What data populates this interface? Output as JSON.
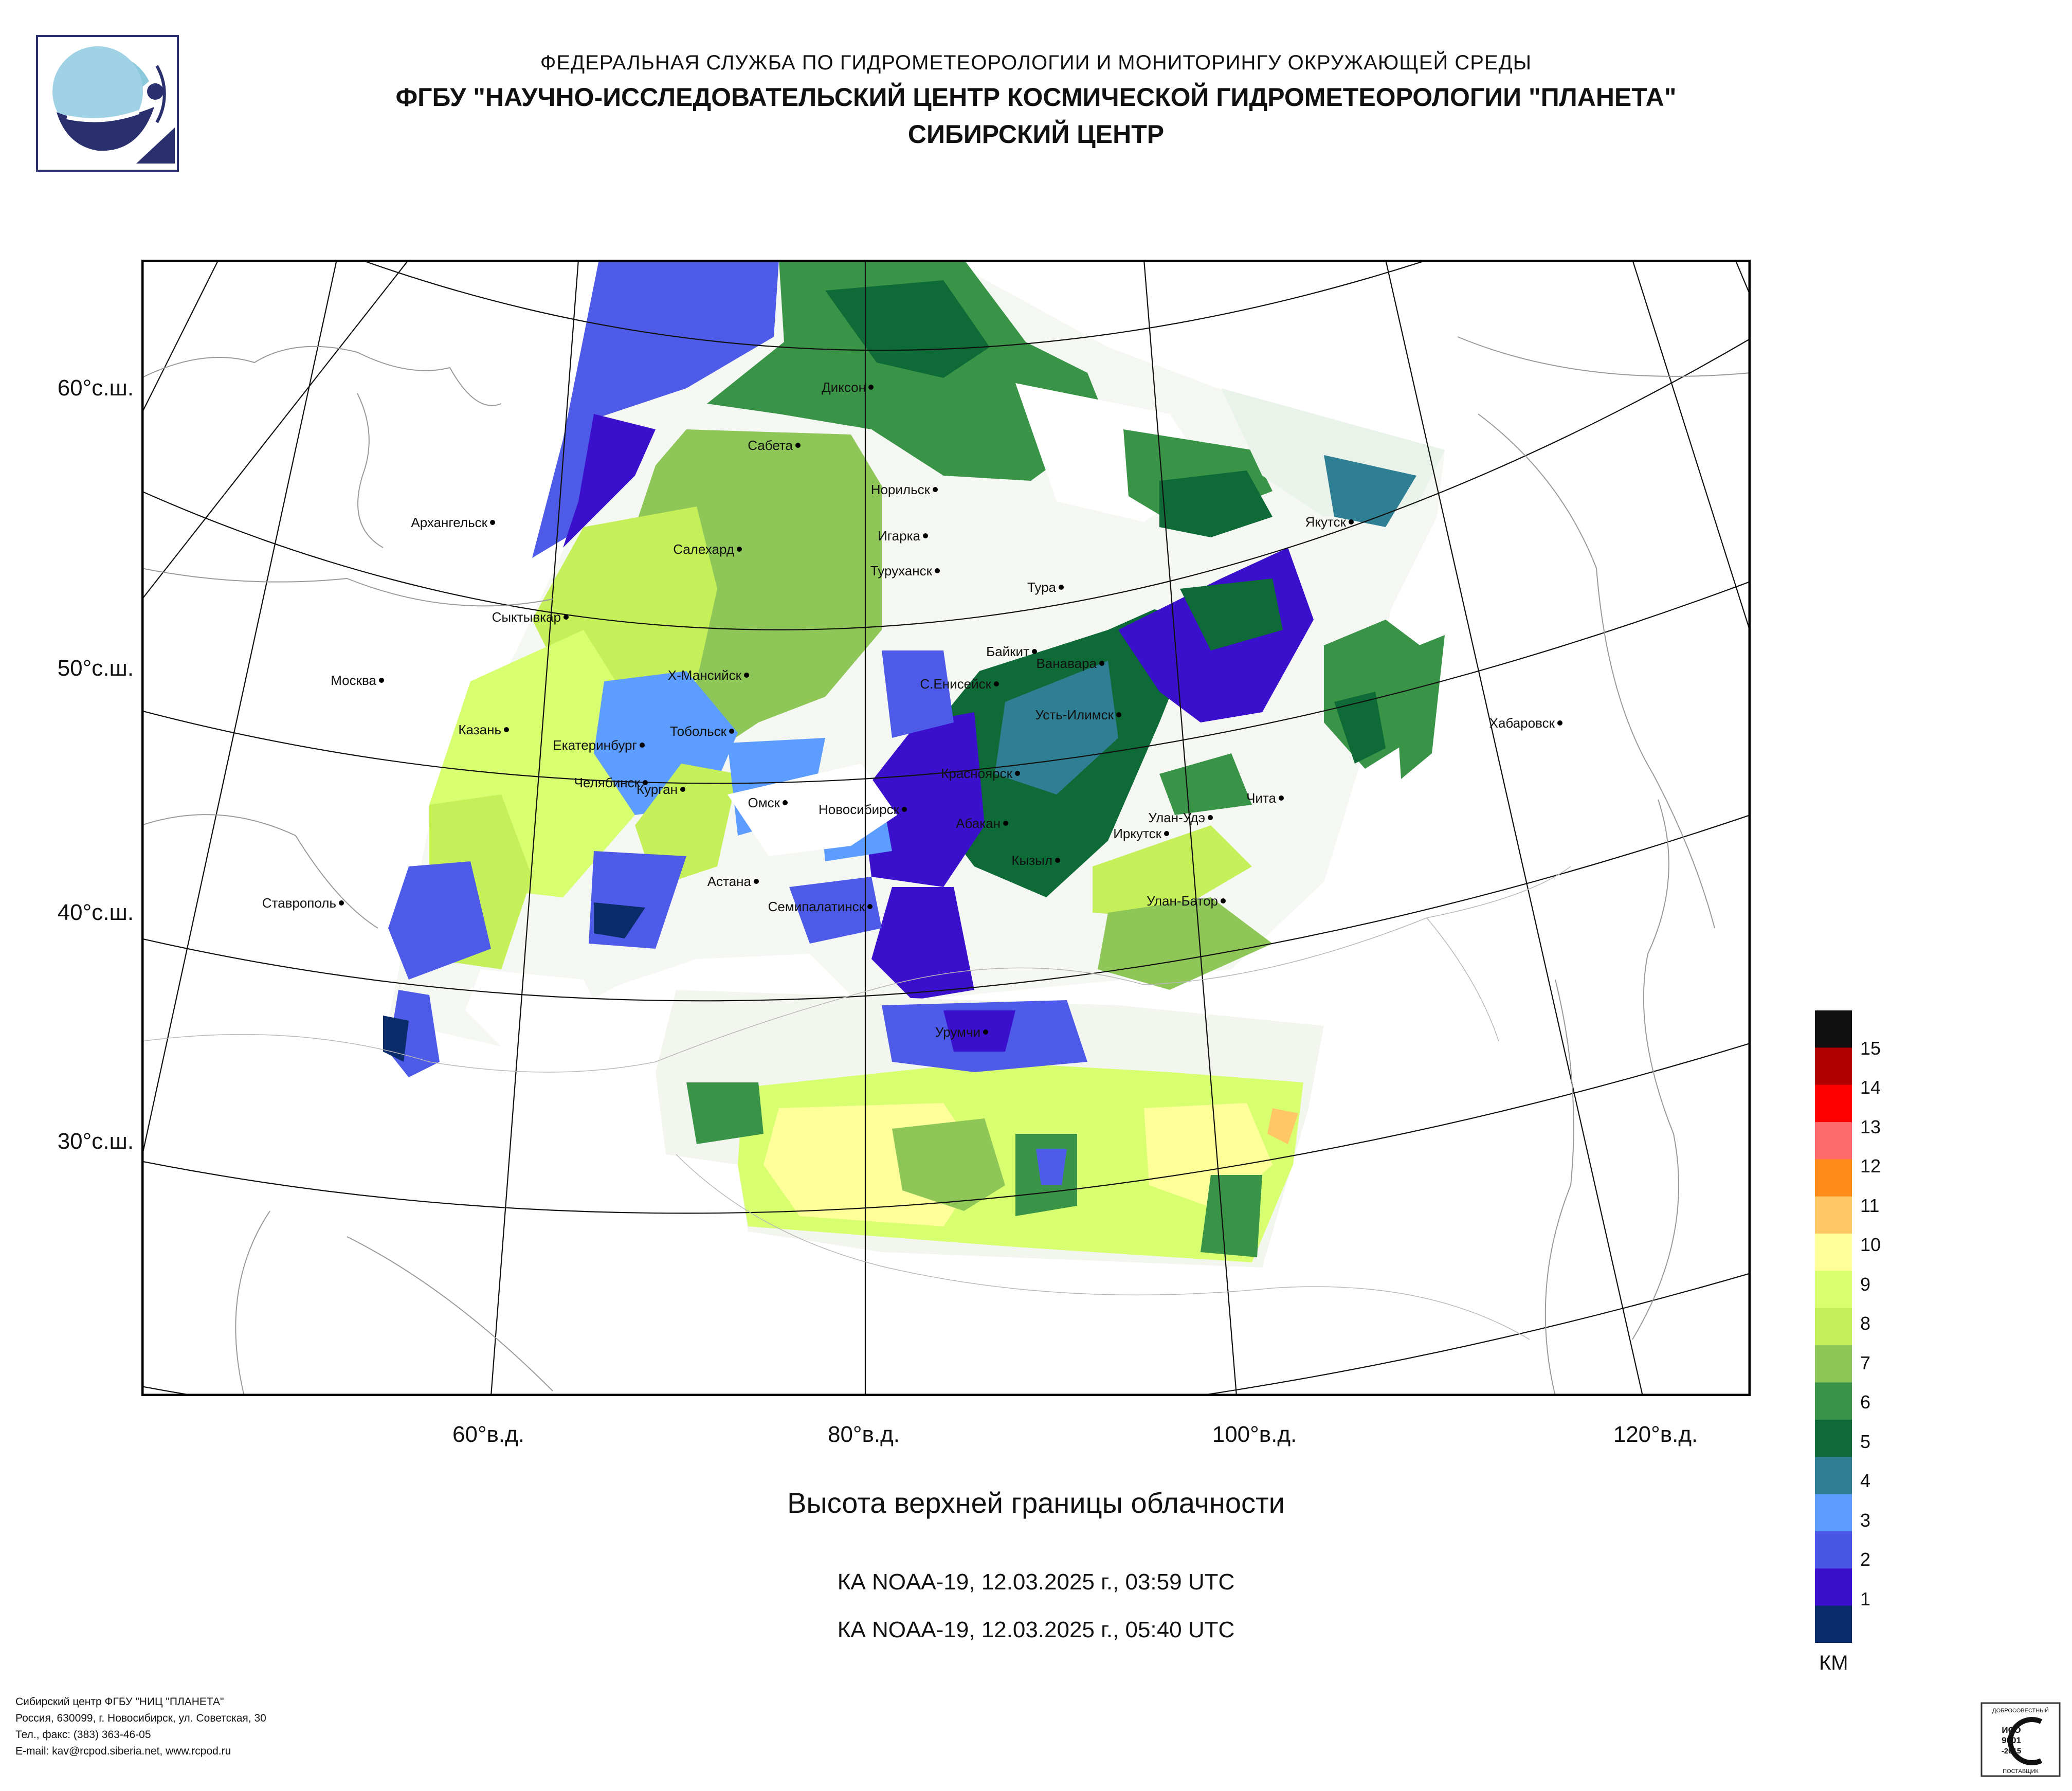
{
  "header": {
    "agency": "ФЕДЕРАЛЬНАЯ СЛУЖБА ПО ГИДРОМЕТЕОРОЛОГИИ И МОНИТОРИНГУ ОКРУЖАЮЩЕЙ СРЕДЫ",
    "center": "ФГБУ \"НАУЧНО-ИССЛЕДОВАТЕЛЬСКИЙ ЦЕНТР КОСМИЧЕСКОЙ ГИДРОМЕТЕОРОЛОГИИ \"ПЛАНЕТА\"",
    "branch": "СИБИРСКИЙ ЦЕНТР"
  },
  "map": {
    "lat_labels": [
      "60°с.ш.",
      "50°с.ш.",
      "40°с.ш.",
      "30°с.ш."
    ],
    "lon_labels": [
      "60°в.д.",
      "80°в.д.",
      "100°в.д.",
      "120°в.д."
    ],
    "cities": [
      "Диксон",
      "Сабета",
      "Норильск",
      "Архангельск",
      "Игарка",
      "Салехард",
      "Якутск",
      "Туруханск",
      "Тура",
      "Сыктывкар",
      "Байкит",
      "Ванавара",
      "Х-Мансийск",
      "С.Енисейск",
      "Москва",
      "Усть-Илимск",
      "Хабаровск",
      "Казань",
      "Тобольск",
      "Екатеринбург",
      "Красноярск",
      "Челябинск",
      "Чита",
      "Курган",
      "Омск",
      "Новосибирск",
      "Улан-Удэ",
      "Абакан",
      "Иркутск",
      "Кызыл",
      "Астана",
      "Ставрополь",
      "Улан-Батор",
      "Семипалатинск",
      "Урумчи"
    ]
  },
  "legend": {
    "levels": [
      "15",
      "14",
      "13",
      "12",
      "11",
      "10",
      "9",
      "8",
      "7",
      "6",
      "5",
      "4",
      "3",
      "2",
      "1"
    ],
    "colors": [
      "#101010",
      "#b00000",
      "#ff0000",
      "#ff6a6a",
      "#ff8c1a",
      "#ffc766",
      "#ffff99",
      "#d7ff70",
      "#c6f05a",
      "#8ec658",
      "#3a9447",
      "#0e6a36",
      "#2e7f93",
      "#5c9dff",
      "#4a57e6",
      "#3a10cc",
      "#0b2c6b"
    ],
    "units": "КМ"
  },
  "caption": {
    "title": "Высота верхней границы облачности",
    "pass1": "КА NOAA-19, 12.03.2025 г., 03:59 UTC",
    "pass2": "КА NOAA-19, 12.03.2025 г., 05:40 UTC"
  },
  "footer": {
    "line1": "Сибирский центр ФГБУ \"НИЦ \"ПЛАНЕТА\"",
    "line2": "Россия, 630099, г. Новосибирск, ул. Советская, 30",
    "line3": "Тел., факс: (383) 363-46-05",
    "line4": "E-mail: kav@rcpod.siberia.net, www.rcpod.ru"
  },
  "cert": {
    "top": "ДОБРОСОВЕСТНЫЙ",
    "mid1": "ИСО",
    "mid2": "9001",
    "mid3": "-2015",
    "bottom": "ПОСТАВЩИК"
  }
}
